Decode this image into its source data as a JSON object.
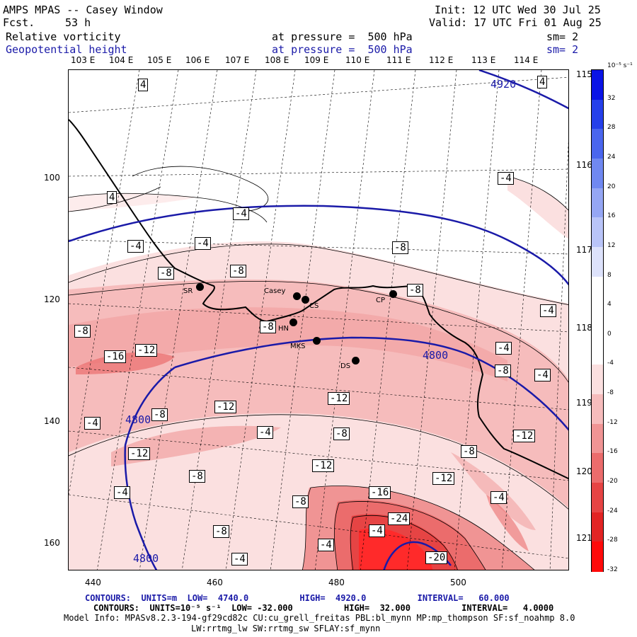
{
  "header": {
    "title": "AMPS MPAS -- Casey Window",
    "fcst_label": "Fcst.",
    "fcst_value": "53 h",
    "init": "Init: 12 UTC Wed 30 Jul 25",
    "valid": "Valid: 17 UTC Fri 01 Aug 25",
    "field1": "Relative vorticity",
    "field1_level": "at pressure =  500 hPa",
    "field1_sm": "sm= 2",
    "field2": "Geopotential height",
    "field2_level": "at pressure =  500 hPa",
    "field2_sm": "sm= 2"
  },
  "top_longitudes": [
    "103 E",
    "104 E",
    "105 E",
    "106 E",
    "107 E",
    "108 E",
    "109 E",
    "110 E",
    "111 E",
    "112 E",
    "113 E",
    "114 E"
  ],
  "right_longitudes": [
    "115 E",
    "116 E",
    "117 E",
    "118 E",
    "119 E",
    "120 E",
    "121 E"
  ],
  "y_ticks": [
    "100",
    "120",
    "140",
    "160"
  ],
  "x_ticks": [
    "440",
    "460",
    "480",
    "500"
  ],
  "colorbar": {
    "unit": "10⁻⁵ s⁻¹",
    "labels": [
      "32",
      "28",
      "24",
      "20",
      "16",
      "12",
      "8",
      "4",
      "0",
      "-4",
      "-8",
      "-12",
      "-16",
      "-20",
      "-24",
      "-28",
      "-32"
    ],
    "colors": [
      "#0a14e6",
      "#2540ea",
      "#4a66ee",
      "#7088f1",
      "#95a6f4",
      "#b9c4f8",
      "#dde2fb",
      "#ffffff",
      "#ffffff",
      "#ffffff",
      "#fbe0e0",
      "#f6bcbc",
      "#f09494",
      "#eb6c6c",
      "#e64444",
      "#e22424",
      "#ff0a0a"
    ]
  },
  "stations": [
    {
      "name": "SR"
    },
    {
      "name": "Casey"
    },
    {
      "name": "CS"
    },
    {
      "name": "HN"
    },
    {
      "name": "MKS"
    },
    {
      "name": "CP"
    },
    {
      "name": "DS"
    }
  ],
  "height_labels": [
    "4920",
    "4800",
    "4800",
    "4800"
  ],
  "vort_labels": [
    "4",
    "4",
    "4",
    "-4",
    "-4",
    "-4",
    "-4",
    "-4",
    "-8",
    "-8",
    "-8",
    "-8",
    "-8",
    "-4",
    "-8",
    "-16",
    "-12",
    "-4",
    "-8",
    "-12",
    "-4",
    "-12",
    "-4",
    "-8",
    "-8",
    "-8",
    "-12",
    "-12",
    "-12",
    "-8",
    "-12",
    "-4",
    "-8",
    "-4",
    "-8",
    "-4",
    "-16",
    "-24",
    "-4",
    "-20",
    "-4"
  ],
  "footer": {
    "line1": "CONTOURS:  UNITS=m  LOW=  4740.0          HIGH=  4920.0          INTERVAL=   60.000",
    "line2": "CONTOURS:  UNITS=10⁻⁵ s⁻¹  LOW= -32.000          HIGH=  32.000          INTERVAL=   4.0000",
    "line3": "Model Info: MPASv8.2.3-194-gf29cd82c CU:cu_grell_freitas PBL:bl_mynn MP:mp_thompson SF:sf_noahmp 8.0",
    "line4": "LW:rrtmg_lw SW:rrtmg_sw SFLAY:sf_mynn"
  }
}
